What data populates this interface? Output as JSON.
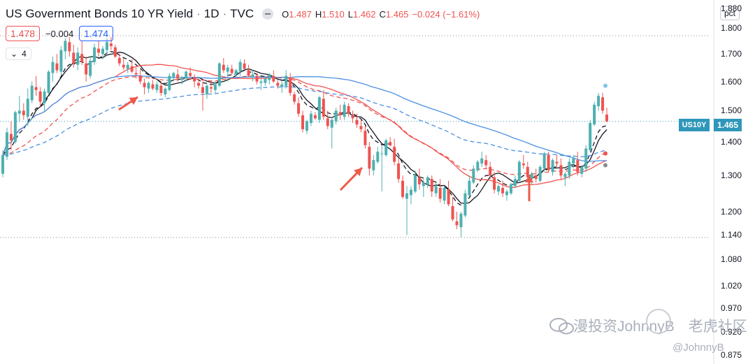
{
  "header": {
    "title": "US Government Bonds 10 YR Yield",
    "interval": "1D",
    "source": "TVC",
    "sep": "·",
    "o_label": "O",
    "o": "1.487",
    "h_label": "H",
    "h": "1.510",
    "l_label": "L",
    "l": "1.462",
    "c_label": "C",
    "c": "1.465",
    "change": "−0.024 (−1.61%)"
  },
  "indicators": {
    "left_value": "1.478",
    "left_change": "−0.004",
    "right_value": "1.474",
    "collapse_count": "4"
  },
  "price_axis": {
    "unit": "pct",
    "last_symbol": "US10Y",
    "last_value": "1.465"
  },
  "watermark": {
    "text": "漫投资JohnnyB",
    "community": "老虎社区",
    "handle": "@JohnnyB"
  },
  "colors": {
    "up": "#4fb0b0",
    "down": "#ef5350",
    "ma_black": "#131722",
    "ma_red": "#ef5350",
    "ma_blue": "#4a90e2",
    "arrow": "#ec5b4a"
  },
  "chart_data": {
    "type": "candlestick",
    "y_ticks": [
      "1.880",
      "1.800",
      "1.700",
      "1.600",
      "1.500",
      "1.400",
      "1.300",
      "1.200",
      "1.140",
      "1.080",
      "1.020",
      "0.970",
      "0.920",
      "0.875"
    ],
    "ylim": [
      0.875,
      1.88
    ],
    "log_scale": true,
    "horizontal_lines": [
      1.77,
      1.134
    ],
    "last_price": 1.465,
    "candles": [
      [
        1.305,
        1.375,
        1.295,
        1.36
      ],
      [
        1.355,
        1.445,
        1.345,
        1.43
      ],
      [
        1.425,
        1.465,
        1.375,
        1.405
      ],
      [
        1.4,
        1.5,
        1.395,
        1.495
      ],
      [
        1.49,
        1.55,
        1.465,
        1.5
      ],
      [
        1.5,
        1.525,
        1.47,
        1.485
      ],
      [
        1.48,
        1.575,
        1.45,
        1.54
      ],
      [
        1.535,
        1.6,
        1.525,
        1.585
      ],
      [
        1.58,
        1.62,
        1.55,
        1.57
      ],
      [
        1.565,
        1.58,
        1.51,
        1.53
      ],
      [
        1.525,
        1.575,
        1.5,
        1.565
      ],
      [
        1.56,
        1.64,
        1.555,
        1.635
      ],
      [
        1.63,
        1.69,
        1.6,
        1.67
      ],
      [
        1.665,
        1.7,
        1.63,
        1.64
      ],
      [
        1.635,
        1.73,
        1.625,
        1.715
      ],
      [
        1.71,
        1.76,
        1.68,
        1.75
      ],
      [
        1.745,
        1.765,
        1.69,
        1.71
      ],
      [
        1.705,
        1.735,
        1.65,
        1.665
      ],
      [
        1.66,
        1.725,
        1.64,
        1.705
      ],
      [
        1.7,
        1.75,
        1.66,
        1.67
      ],
      [
        1.665,
        1.69,
        1.6,
        1.625
      ],
      [
        1.62,
        1.69,
        1.61,
        1.675
      ],
      [
        1.67,
        1.74,
        1.66,
        1.725
      ],
      [
        1.72,
        1.75,
        1.69,
        1.705
      ],
      [
        1.7,
        1.73,
        1.68,
        1.72
      ],
      [
        1.715,
        1.76,
        1.7,
        1.745
      ],
      [
        1.74,
        1.765,
        1.715,
        1.73
      ],
      [
        1.725,
        1.735,
        1.685,
        1.69
      ],
      [
        1.685,
        1.7,
        1.655,
        1.665
      ],
      [
        1.66,
        1.685,
        1.64,
        1.65
      ],
      [
        1.645,
        1.67,
        1.63,
        1.66
      ],
      [
        1.655,
        1.68,
        1.63,
        1.635
      ],
      [
        1.63,
        1.65,
        1.61,
        1.625
      ],
      [
        1.62,
        1.64,
        1.59,
        1.6
      ],
      [
        1.595,
        1.61,
        1.555,
        1.58
      ],
      [
        1.575,
        1.6,
        1.56,
        1.595
      ],
      [
        1.59,
        1.605,
        1.57,
        1.575
      ],
      [
        1.57,
        1.6,
        1.56,
        1.59
      ],
      [
        1.585,
        1.6,
        1.55,
        1.56
      ],
      [
        1.555,
        1.58,
        1.545,
        1.575
      ],
      [
        1.57,
        1.63,
        1.565,
        1.62
      ],
      [
        1.615,
        1.635,
        1.6,
        1.63
      ],
      [
        1.625,
        1.645,
        1.6,
        1.61
      ],
      [
        1.605,
        1.62,
        1.59,
        1.615
      ],
      [
        1.61,
        1.64,
        1.6,
        1.635
      ],
      [
        1.63,
        1.65,
        1.615,
        1.62
      ],
      [
        1.615,
        1.625,
        1.58,
        1.6
      ],
      [
        1.595,
        1.61,
        1.575,
        1.585
      ],
      [
        1.58,
        1.6,
        1.5,
        1.56
      ],
      [
        1.555,
        1.59,
        1.54,
        1.585
      ],
      [
        1.58,
        1.6,
        1.56,
        1.575
      ],
      [
        1.57,
        1.6,
        1.56,
        1.59
      ],
      [
        1.585,
        1.67,
        1.58,
        1.665
      ],
      [
        1.66,
        1.685,
        1.63,
        1.64
      ],
      [
        1.635,
        1.66,
        1.6,
        1.65
      ],
      [
        1.645,
        1.66,
        1.625,
        1.63
      ],
      [
        1.625,
        1.645,
        1.61,
        1.64
      ],
      [
        1.635,
        1.68,
        1.62,
        1.67
      ],
      [
        1.665,
        1.68,
        1.64,
        1.645
      ],
      [
        1.64,
        1.66,
        1.615,
        1.62
      ],
      [
        1.615,
        1.64,
        1.6,
        1.625
      ],
      [
        1.62,
        1.63,
        1.59,
        1.6
      ],
      [
        1.595,
        1.61,
        1.57,
        1.6
      ],
      [
        1.595,
        1.615,
        1.585,
        1.61
      ],
      [
        1.605,
        1.63,
        1.59,
        1.625
      ],
      [
        1.62,
        1.64,
        1.595,
        1.6
      ],
      [
        1.595,
        1.605,
        1.575,
        1.585
      ],
      [
        1.58,
        1.6,
        1.56,
        1.59
      ],
      [
        1.585,
        1.64,
        1.575,
        1.62
      ],
      [
        1.615,
        1.63,
        1.55,
        1.56
      ],
      [
        1.555,
        1.565,
        1.52,
        1.53
      ],
      [
        1.525,
        1.545,
        1.48,
        1.49
      ],
      [
        1.485,
        1.5,
        1.43,
        1.44
      ],
      [
        1.435,
        1.47,
        1.425,
        1.465
      ],
      [
        1.46,
        1.5,
        1.45,
        1.49
      ],
      [
        1.485,
        1.495,
        1.47,
        1.475
      ],
      [
        1.47,
        1.55,
        1.46,
        1.545
      ],
      [
        1.54,
        1.57,
        1.47,
        1.48
      ],
      [
        1.475,
        1.5,
        1.44,
        1.45
      ],
      [
        1.445,
        1.48,
        1.38,
        1.47
      ],
      [
        1.465,
        1.51,
        1.455,
        1.5
      ],
      [
        1.495,
        1.52,
        1.47,
        1.485
      ],
      [
        1.48,
        1.53,
        1.47,
        1.52
      ],
      [
        1.515,
        1.525,
        1.48,
        1.49
      ],
      [
        1.485,
        1.5,
        1.46,
        1.475
      ],
      [
        1.47,
        1.49,
        1.445,
        1.455
      ],
      [
        1.45,
        1.47,
        1.43,
        1.44
      ],
      [
        1.435,
        1.45,
        1.38,
        1.39
      ],
      [
        1.385,
        1.4,
        1.3,
        1.32
      ],
      [
        1.315,
        1.36,
        1.3,
        1.345
      ],
      [
        1.34,
        1.385,
        1.335,
        1.37
      ],
      [
        1.365,
        1.39,
        1.255,
        1.365
      ],
      [
        1.36,
        1.41,
        1.355,
        1.405
      ],
      [
        1.4,
        1.415,
        1.385,
        1.39
      ],
      [
        1.385,
        1.41,
        1.33,
        1.34
      ],
      [
        1.335,
        1.35,
        1.28,
        1.29
      ],
      [
        1.285,
        1.3,
        1.235,
        1.24
      ],
      [
        1.235,
        1.27,
        1.14,
        1.25
      ],
      [
        1.245,
        1.27,
        1.22,
        1.26
      ],
      [
        1.255,
        1.315,
        1.25,
        1.3
      ],
      [
        1.295,
        1.32,
        1.26,
        1.275
      ],
      [
        1.27,
        1.29,
        1.24,
        1.28
      ],
      [
        1.275,
        1.3,
        1.265,
        1.295
      ],
      [
        1.29,
        1.3,
        1.24,
        1.255
      ],
      [
        1.25,
        1.28,
        1.24,
        1.27
      ],
      [
        1.265,
        1.29,
        1.225,
        1.235
      ],
      [
        1.23,
        1.27,
        1.22,
        1.265
      ],
      [
        1.26,
        1.285,
        1.215,
        1.22
      ],
      [
        1.215,
        1.24,
        1.175,
        1.18
      ],
      [
        1.175,
        1.2,
        1.155,
        1.165
      ],
      [
        1.16,
        1.2,
        1.135,
        1.195
      ],
      [
        1.19,
        1.26,
        1.185,
        1.25
      ],
      [
        1.245,
        1.3,
        1.24,
        1.285
      ],
      [
        1.28,
        1.33,
        1.275,
        1.32
      ],
      [
        1.315,
        1.345,
        1.31,
        1.34
      ],
      [
        1.335,
        1.37,
        1.325,
        1.35
      ],
      [
        1.345,
        1.36,
        1.32,
        1.33
      ],
      [
        1.325,
        1.34,
        1.29,
        1.3
      ],
      [
        1.295,
        1.31,
        1.25,
        1.26
      ],
      [
        1.255,
        1.275,
        1.245,
        1.27
      ],
      [
        1.265,
        1.285,
        1.24,
        1.25
      ],
      [
        1.245,
        1.26,
        1.23,
        1.255
      ],
      [
        1.25,
        1.28,
        1.245,
        1.275
      ],
      [
        1.27,
        1.3,
        1.265,
        1.29
      ],
      [
        1.285,
        1.345,
        1.28,
        1.34
      ],
      [
        1.335,
        1.36,
        1.32,
        1.33
      ],
      [
        1.325,
        1.34,
        1.29,
        1.295
      ],
      [
        1.29,
        1.31,
        1.275,
        1.305
      ],
      [
        1.3,
        1.32,
        1.28,
        1.29
      ],
      [
        1.285,
        1.33,
        1.28,
        1.325
      ],
      [
        1.32,
        1.37,
        1.31,
        1.365
      ],
      [
        1.36,
        1.37,
        1.31,
        1.315
      ],
      [
        1.31,
        1.35,
        1.3,
        1.345
      ],
      [
        1.34,
        1.36,
        1.325,
        1.335
      ],
      [
        1.33,
        1.35,
        1.29,
        1.3
      ],
      [
        1.295,
        1.31,
        1.27,
        1.305
      ],
      [
        1.3,
        1.35,
        1.29,
        1.34
      ],
      [
        1.335,
        1.36,
        1.32,
        1.35
      ],
      [
        1.345,
        1.37,
        1.3,
        1.31
      ],
      [
        1.305,
        1.33,
        1.295,
        1.325
      ],
      [
        1.32,
        1.39,
        1.31,
        1.38
      ],
      [
        1.375,
        1.47,
        1.37,
        1.46
      ],
      [
        1.455,
        1.53,
        1.45,
        1.52
      ],
      [
        1.515,
        1.56,
        1.5,
        1.55
      ],
      [
        1.545,
        1.56,
        1.49,
        1.5
      ],
      [
        1.487,
        1.51,
        1.462,
        1.465
      ]
    ]
  }
}
